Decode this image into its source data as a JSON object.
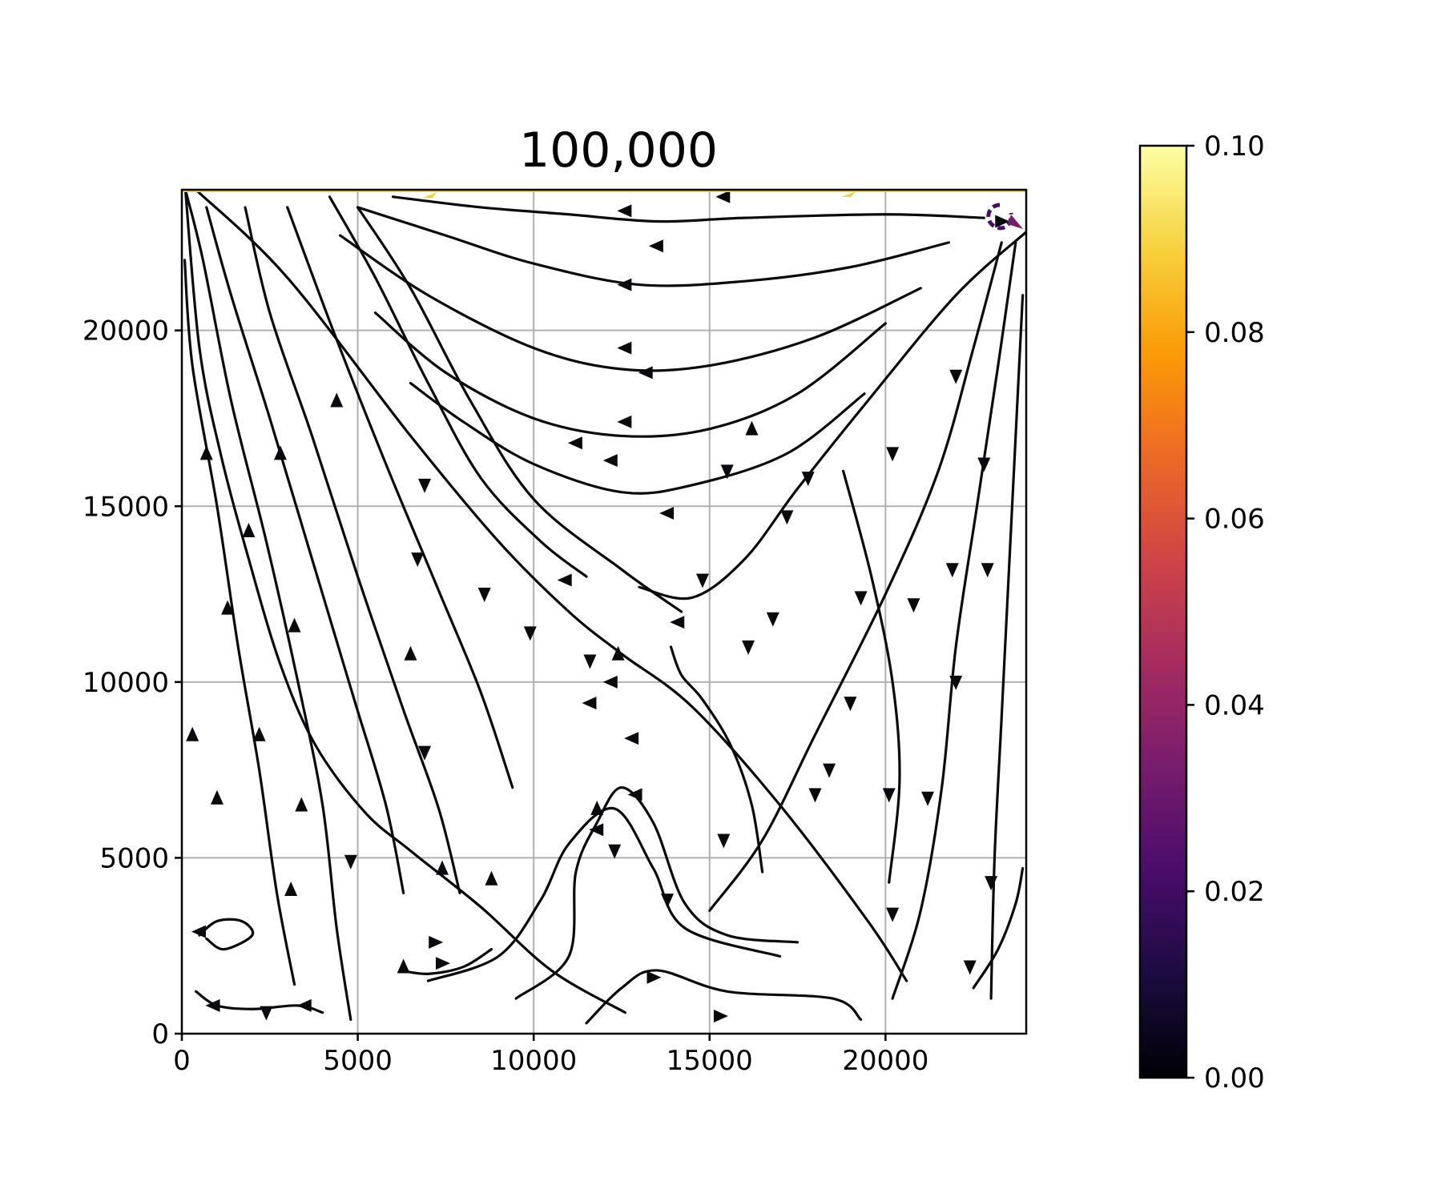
{
  "chart_data": {
    "type": "streamplot",
    "title": "100,000",
    "xlabel": "",
    "ylabel": "",
    "xlim": [
      0,
      24000
    ],
    "ylim": [
      0,
      24000
    ],
    "grid": true,
    "x_ticks": [
      0,
      5000,
      10000,
      15000,
      20000
    ],
    "y_ticks": [
      0,
      5000,
      10000,
      15000,
      20000
    ],
    "x_tick_labels": [
      "0",
      "5000",
      "10000",
      "15000",
      "20000"
    ],
    "y_tick_labels": [
      "0",
      "5000",
      "10000",
      "15000",
      "20000"
    ],
    "colormap": "inferno",
    "colorbar": {
      "range": [
        0.0,
        0.1
      ],
      "ticks": [
        0.0,
        0.02,
        0.04,
        0.06,
        0.08,
        0.1
      ],
      "tick_labels": [
        "0.00",
        "0.02",
        "0.04",
        "0.06",
        "0.08",
        "0.10"
      ],
      "stops": [
        "#000004",
        "#1b0c41",
        "#4a0c6b",
        "#781c6d",
        "#a52c60",
        "#cf4446",
        "#ed6925",
        "#fb9b06",
        "#f7d13d",
        "#fcffa4"
      ]
    },
    "series": [
      {
        "values": [
          [
            12600,
            600
          ],
          [
            10500,
            1800
          ],
          [
            8500,
            3600
          ],
          [
            6500,
            5200
          ],
          [
            5200,
            6300
          ],
          [
            3800,
            8200
          ],
          [
            2800,
            10500
          ],
          [
            1900,
            13500
          ],
          [
            1100,
            16500
          ],
          [
            500,
            19500
          ],
          [
            100,
            24000
          ]
        ]
      },
      {
        "values": [
          [
            3200,
            1400
          ],
          [
            2700,
            4000
          ],
          [
            2200,
            7500
          ],
          [
            1600,
            11000
          ],
          [
            1000,
            15000
          ],
          [
            300,
            19000
          ],
          [
            80,
            22000
          ]
        ]
      },
      {
        "values": [
          [
            4800,
            400
          ],
          [
            4400,
            3000
          ],
          [
            4000,
            6500
          ],
          [
            3300,
            10000
          ],
          [
            2400,
            14000
          ],
          [
            1400,
            18000
          ],
          [
            600,
            22000
          ],
          [
            100,
            24000
          ]
        ]
      },
      {
        "values": [
          [
            6300,
            4000
          ],
          [
            5800,
            6500
          ],
          [
            4900,
            9500
          ],
          [
            3700,
            13500
          ],
          [
            2500,
            17500
          ],
          [
            1400,
            21000
          ],
          [
            700,
            23500
          ]
        ]
      },
      {
        "values": [
          [
            7900,
            4000
          ],
          [
            7300,
            6400
          ],
          [
            6300,
            9200
          ],
          [
            5000,
            13000
          ],
          [
            3700,
            17000
          ],
          [
            2500,
            20500
          ],
          [
            1800,
            23500
          ]
        ]
      },
      {
        "values": [
          [
            9400,
            7000
          ],
          [
            8500,
            9700
          ],
          [
            7300,
            12600
          ],
          [
            5800,
            16200
          ],
          [
            4300,
            20000
          ],
          [
            3000,
            23500
          ]
        ]
      },
      {
        "values": [
          [
            11500,
            13000
          ],
          [
            10200,
            14000
          ],
          [
            8500,
            15800
          ],
          [
            7000,
            18500
          ],
          [
            5500,
            21500
          ],
          [
            4200,
            23800
          ]
        ]
      },
      {
        "values": [
          [
            14200,
            12000
          ],
          [
            12500,
            13200
          ],
          [
            10000,
            15200
          ],
          [
            8200,
            18000
          ],
          [
            6500,
            21200
          ],
          [
            5000,
            23500
          ]
        ]
      },
      {
        "values": [
          [
            24000,
            22800
          ],
          [
            22000,
            21000
          ],
          [
            19500,
            18000
          ],
          [
            17500,
            15500
          ],
          [
            16000,
            13500
          ],
          [
            14500,
            12400
          ],
          [
            13000,
            12700
          ]
        ]
      },
      {
        "values": [
          [
            23300,
            22500
          ],
          [
            22500,
            19500
          ],
          [
            21500,
            16000
          ],
          [
            20000,
            12500
          ],
          [
            18000,
            8500
          ],
          [
            16500,
            5500
          ],
          [
            15000,
            3500
          ]
        ]
      },
      {
        "values": [
          [
            23700,
            22500
          ],
          [
            23200,
            19000
          ],
          [
            22600,
            15000
          ],
          [
            22000,
            11000
          ],
          [
            21600,
            7000
          ],
          [
            21000,
            3500
          ],
          [
            20200,
            1000
          ]
        ]
      },
      {
        "values": [
          [
            23900,
            21000
          ],
          [
            23700,
            17000
          ],
          [
            23500,
            13000
          ],
          [
            23300,
            9000
          ],
          [
            23100,
            5000
          ],
          [
            23000,
            1000
          ]
        ]
      },
      {
        "values": [
          [
            22800,
            23200
          ],
          [
            20000,
            23300
          ],
          [
            16000,
            23200
          ],
          [
            13500,
            23100
          ],
          [
            11000,
            23300
          ],
          [
            8500,
            23500
          ],
          [
            6000,
            23800
          ]
        ]
      },
      {
        "values": [
          [
            21800,
            22500
          ],
          [
            19000,
            21800
          ],
          [
            16000,
            21400
          ],
          [
            13000,
            21300
          ],
          [
            10000,
            21900
          ],
          [
            7500,
            22700
          ],
          [
            5000,
            23500
          ]
        ]
      },
      {
        "values": [
          [
            21000,
            21200
          ],
          [
            18000,
            19800
          ],
          [
            15000,
            19000
          ],
          [
            12500,
            18900
          ],
          [
            10000,
            19500
          ],
          [
            7000,
            21000
          ],
          [
            4500,
            22700
          ]
        ]
      },
      {
        "values": [
          [
            20000,
            20200
          ],
          [
            17500,
            18200
          ],
          [
            15000,
            17200
          ],
          [
            12500,
            17000
          ],
          [
            10000,
            17500
          ],
          [
            7500,
            18800
          ],
          [
            5500,
            20500
          ]
        ]
      },
      {
        "values": [
          [
            19400,
            18200
          ],
          [
            17200,
            16500
          ],
          [
            14500,
            15600
          ],
          [
            12500,
            15400
          ],
          [
            10000,
            16200
          ],
          [
            8000,
            17400
          ],
          [
            6500,
            18500
          ]
        ]
      },
      {
        "values": [
          [
            9500,
            1000
          ],
          [
            11000,
            2200
          ],
          [
            11200,
            4600
          ],
          [
            11800,
            6000
          ],
          [
            12500,
            7000
          ],
          [
            13400,
            6000
          ],
          [
            14300,
            3700
          ],
          [
            15500,
            2800
          ],
          [
            17500,
            2600
          ]
        ]
      },
      {
        "values": [
          [
            7000,
            1500
          ],
          [
            9000,
            2200
          ],
          [
            10200,
            3800
          ],
          [
            11000,
            5400
          ],
          [
            12300,
            6400
          ],
          [
            13400,
            4700
          ],
          [
            14300,
            3000
          ],
          [
            17000,
            2200
          ]
        ]
      },
      {
        "values": [
          [
            11500,
            300
          ],
          [
            12500,
            1300
          ],
          [
            13500,
            1800
          ],
          [
            15500,
            1200
          ],
          [
            18500,
            1000
          ],
          [
            19300,
            400
          ]
        ]
      },
      {
        "values": [
          [
            500,
            2800
          ],
          [
            1000,
            3200
          ],
          [
            1700,
            3200
          ],
          [
            2000,
            2800
          ],
          [
            1200,
            2400
          ],
          [
            700,
            2700
          ]
        ]
      },
      {
        "values": [
          [
            400,
            1200
          ],
          [
            1000,
            800
          ],
          [
            2000,
            700
          ],
          [
            3300,
            800
          ],
          [
            4000,
            600
          ]
        ]
      },
      {
        "values": [
          [
            6200,
            1800
          ],
          [
            7000,
            1700
          ],
          [
            8000,
            1900
          ],
          [
            8800,
            2400
          ]
        ]
      },
      {
        "values": [
          [
            16500,
            4600
          ],
          [
            16200,
            6500
          ],
          [
            15600,
            8200
          ],
          [
            14800,
            9500
          ],
          [
            14200,
            10200
          ],
          [
            13900,
            11000
          ]
        ]
      },
      {
        "values": [
          [
            20100,
            4300
          ],
          [
            20400,
            7200
          ],
          [
            20200,
            10000
          ],
          [
            19600,
            13000
          ],
          [
            18800,
            16000
          ]
        ]
      },
      {
        "values": [
          [
            22500,
            1300
          ],
          [
            23200,
            2400
          ],
          [
            23700,
            3700
          ],
          [
            23900,
            4700
          ]
        ]
      },
      {
        "values": [
          [
            400,
            24000
          ],
          [
            3000,
            21500
          ],
          [
            6500,
            17000
          ],
          [
            9000,
            14000
          ],
          [
            11000,
            12000
          ],
          [
            12500,
            10800
          ],
          [
            14500,
            9300
          ],
          [
            17000,
            6500
          ],
          [
            19500,
            3200
          ],
          [
            20600,
            1500
          ]
        ]
      }
    ],
    "arrows": [
      {
        "x": 700,
        "y": 16500,
        "dir": "up"
      },
      {
        "x": 1900,
        "y": 14300,
        "dir": "up"
      },
      {
        "x": 2800,
        "y": 16500,
        "dir": "up"
      },
      {
        "x": 3200,
        "y": 11600,
        "dir": "up"
      },
      {
        "x": 1300,
        "y": 12100,
        "dir": "up"
      },
      {
        "x": 2200,
        "y": 8500,
        "dir": "up"
      },
      {
        "x": 3400,
        "y": 6500,
        "dir": "up"
      },
      {
        "x": 1000,
        "y": 6700,
        "dir": "up"
      },
      {
        "x": 300,
        "y": 8500,
        "dir": "up"
      },
      {
        "x": 3100,
        "y": 4100,
        "dir": "up"
      },
      {
        "x": 4400,
        "y": 18000,
        "dir": "up"
      },
      {
        "x": 6500,
        "y": 10800,
        "dir": "up"
      },
      {
        "x": 12600,
        "y": 23400,
        "dir": "left"
      },
      {
        "x": 13500,
        "y": 22400,
        "dir": "left"
      },
      {
        "x": 12600,
        "y": 21300,
        "dir": "left"
      },
      {
        "x": 12600,
        "y": 19500,
        "dir": "left"
      },
      {
        "x": 13200,
        "y": 18800,
        "dir": "left"
      },
      {
        "x": 12600,
        "y": 17400,
        "dir": "left"
      },
      {
        "x": 11200,
        "y": 16800,
        "dir": "left"
      },
      {
        "x": 12200,
        "y": 16300,
        "dir": "left"
      },
      {
        "x": 15400,
        "y": 23800,
        "dir": "left"
      },
      {
        "x": 16200,
        "y": 17200,
        "dir": "up"
      },
      {
        "x": 15500,
        "y": 16000,
        "dir": "down"
      },
      {
        "x": 13800,
        "y": 14800,
        "dir": "left"
      },
      {
        "x": 17800,
        "y": 15800,
        "dir": "down"
      },
      {
        "x": 17200,
        "y": 14700,
        "dir": "down"
      },
      {
        "x": 22000,
        "y": 18700,
        "dir": "down"
      },
      {
        "x": 20200,
        "y": 16500,
        "dir": "down"
      },
      {
        "x": 22800,
        "y": 16200,
        "dir": "down"
      },
      {
        "x": 19300,
        "y": 12400,
        "dir": "down"
      },
      {
        "x": 20800,
        "y": 12200,
        "dir": "down"
      },
      {
        "x": 21900,
        "y": 13200,
        "dir": "down"
      },
      {
        "x": 22900,
        "y": 13200,
        "dir": "down"
      },
      {
        "x": 16800,
        "y": 11800,
        "dir": "down"
      },
      {
        "x": 16100,
        "y": 11000,
        "dir": "down"
      },
      {
        "x": 19000,
        "y": 9400,
        "dir": "down"
      },
      {
        "x": 18400,
        "y": 7500,
        "dir": "down"
      },
      {
        "x": 18000,
        "y": 6800,
        "dir": "down"
      },
      {
        "x": 20100,
        "y": 6800,
        "dir": "down"
      },
      {
        "x": 21200,
        "y": 6700,
        "dir": "down"
      },
      {
        "x": 22000,
        "y": 10000,
        "dir": "down"
      },
      {
        "x": 20200,
        "y": 3400,
        "dir": "down"
      },
      {
        "x": 23000,
        "y": 4300,
        "dir": "down"
      },
      {
        "x": 22400,
        "y": 1900,
        "dir": "down"
      },
      {
        "x": 15300,
        "y": 500,
        "dir": "right"
      },
      {
        "x": 13400,
        "y": 1600,
        "dir": "right"
      },
      {
        "x": 7200,
        "y": 2600,
        "dir": "right"
      },
      {
        "x": 7400,
        "y": 2000,
        "dir": "right"
      },
      {
        "x": 6300,
        "y": 1900,
        "dir": "up"
      },
      {
        "x": 8800,
        "y": 4400,
        "dir": "up"
      },
      {
        "x": 7400,
        "y": 4700,
        "dir": "up"
      },
      {
        "x": 12900,
        "y": 6800,
        "dir": "left"
      },
      {
        "x": 11800,
        "y": 5800,
        "dir": "left"
      },
      {
        "x": 11800,
        "y": 6400,
        "dir": "up"
      },
      {
        "x": 12800,
        "y": 8400,
        "dir": "left"
      },
      {
        "x": 11600,
        "y": 9400,
        "dir": "left"
      },
      {
        "x": 12200,
        "y": 10000,
        "dir": "left"
      },
      {
        "x": 14100,
        "y": 11700,
        "dir": "left"
      },
      {
        "x": 12400,
        "y": 10800,
        "dir": "up"
      },
      {
        "x": 10900,
        "y": 12900,
        "dir": "left"
      },
      {
        "x": 14800,
        "y": 12900,
        "dir": "down"
      },
      {
        "x": 6900,
        "y": 15600,
        "dir": "down"
      },
      {
        "x": 6700,
        "y": 13500,
        "dir": "down"
      },
      {
        "x": 8600,
        "y": 12500,
        "dir": "down"
      },
      {
        "x": 9900,
        "y": 11400,
        "dir": "down"
      },
      {
        "x": 11600,
        "y": 10600,
        "dir": "down"
      },
      {
        "x": 6900,
        "y": 8000,
        "dir": "down"
      },
      {
        "x": 12300,
        "y": 5200,
        "dir": "down"
      },
      {
        "x": 13800,
        "y": 3800,
        "dir": "down"
      },
      {
        "x": 15400,
        "y": 5500,
        "dir": "down"
      },
      {
        "x": 4800,
        "y": 4900,
        "dir": "down"
      },
      {
        "x": 900,
        "y": 800,
        "dir": "left"
      },
      {
        "x": 2400,
        "y": 600,
        "dir": "down"
      },
      {
        "x": 3500,
        "y": 800,
        "dir": "left"
      },
      {
        "x": 500,
        "y": 2900,
        "dir": "left"
      },
      {
        "x": 23300,
        "y": 23100,
        "dir": "right"
      }
    ]
  }
}
